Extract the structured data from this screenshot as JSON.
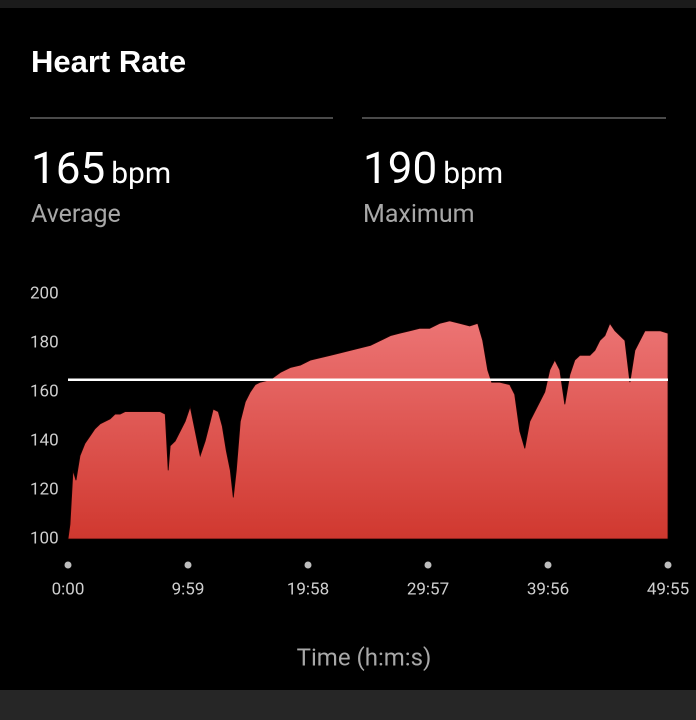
{
  "header": {
    "title": "Heart Rate"
  },
  "stats": [
    {
      "value": 165,
      "unit": "bpm",
      "label": "Average"
    },
    {
      "value": 190,
      "unit": "bpm",
      "label": "Maximum"
    }
  ],
  "chart_data": {
    "type": "area",
    "xlabel": "Time (h:m:s)",
    "color": "#e05050",
    "x": [
      0,
      10,
      25,
      40,
      60,
      85,
      110,
      135,
      160,
      185,
      210,
      235,
      260,
      285,
      310,
      360,
      410,
      460,
      485,
      500,
      510,
      535,
      560,
      585,
      610,
      625,
      645,
      660,
      685,
      710,
      725,
      750,
      770,
      790,
      810,
      825,
      840,
      860,
      885,
      910,
      935,
      960,
      1010,
      1060,
      1110,
      1160,
      1210,
      1260,
      1310,
      1360,
      1410,
      1460,
      1510,
      1560,
      1610,
      1655,
      1705,
      1755,
      1805,
      1855,
      1905,
      1955,
      2005,
      2045,
      2070,
      2095,
      2115,
      2155,
      2205,
      2230,
      2255,
      2280,
      2305,
      2330,
      2355,
      2380,
      2405,
      2430,
      2455,
      2480,
      2505,
      2530,
      2555,
      2605,
      2630,
      2655,
      2680,
      2705,
      2730,
      2755,
      2780,
      2805,
      2830,
      2855,
      2880,
      2905,
      2955,
      2995
    ],
    "values": [
      100,
      106,
      128,
      124,
      134,
      139,
      142,
      145,
      147,
      148,
      149,
      151,
      151,
      152,
      152,
      152,
      152,
      152,
      151,
      128,
      138,
      140,
      144,
      148,
      154,
      148,
      140,
      134,
      140,
      148,
      153,
      152,
      146,
      136,
      128,
      117,
      128,
      148,
      156,
      160,
      163,
      164,
      165,
      168,
      170,
      171,
      173,
      174,
      175,
      176,
      177,
      178,
      179,
      181,
      183,
      184,
      185,
      186,
      186,
      188,
      189,
      188,
      187,
      188,
      181,
      169,
      164,
      164,
      163,
      159,
      144,
      137,
      148,
      152,
      156,
      160,
      169,
      173,
      169,
      155,
      167,
      173,
      175,
      175,
      177,
      181,
      183,
      188,
      185,
      183,
      181,
      164,
      177,
      181,
      185,
      185,
      185,
      184
    ],
    "xlim": [
      0,
      2995
    ],
    "xticks": [
      {
        "value": 0,
        "label": "0:00"
      },
      {
        "value": 599,
        "label": "9:59"
      },
      {
        "value": 1198,
        "label": "19:58"
      },
      {
        "value": 1797,
        "label": "29:57"
      },
      {
        "value": 2396,
        "label": "39:56"
      },
      {
        "value": 2995,
        "label": "49:55"
      }
    ],
    "ylim": [
      100,
      200
    ],
    "yticks": [
      100,
      120,
      140,
      160,
      180,
      200
    ]
  }
}
